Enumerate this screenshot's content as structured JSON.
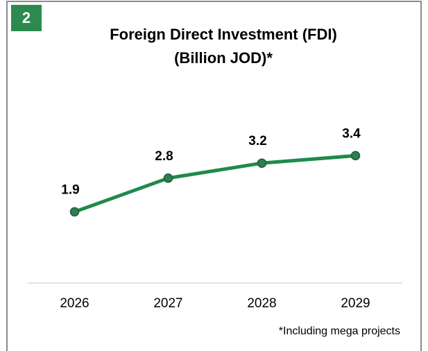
{
  "badge": "2",
  "chart_data": {
    "type": "line",
    "title": "Foreign Direct Investment (FDI)",
    "subtitle": "(Billion JOD)*",
    "categories": [
      "2026",
      "2027",
      "2028",
      "2029"
    ],
    "series": [
      {
        "name": "FDI",
        "color": "#1e8a4c",
        "values": [
          1.9,
          2.8,
          3.2,
          3.4
        ]
      }
    ],
    "ylim": [
      0,
      7
    ],
    "annotation": "*Including mega projects"
  }
}
